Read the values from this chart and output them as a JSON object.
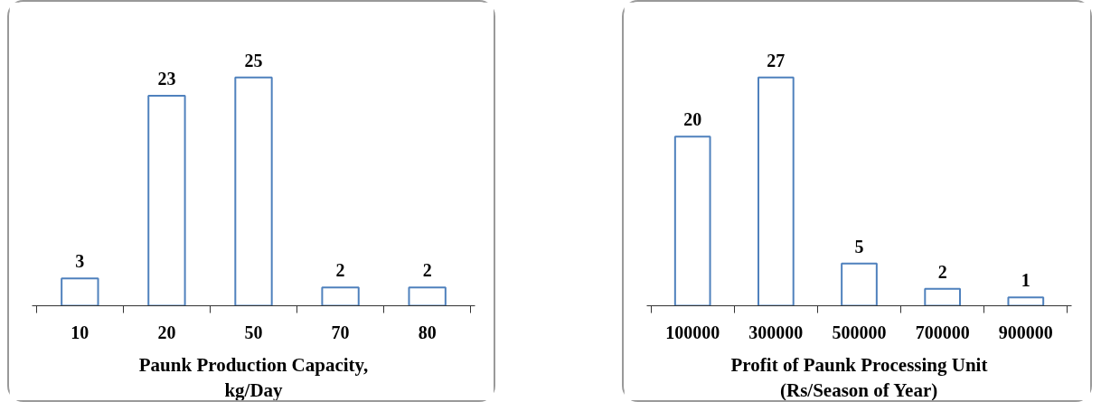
{
  "chart_data": [
    {
      "type": "bar",
      "xlabel": "Paunk Production Capacity,\nkg/Day",
      "categories": [
        "10",
        "20",
        "50",
        "70",
        "80"
      ],
      "series": [
        {
          "color": "#4f81bd",
          "values": [
            3,
            23,
            25,
            2,
            2
          ]
        }
      ],
      "data_labels": true,
      "grid": false,
      "tick_labels": "x"
    },
    {
      "type": "bar",
      "xlabel": "Profit of Paunk Processing Unit\n(Rs/Season of Year)",
      "categories": [
        "100000",
        "300000",
        "500000",
        "700000",
        "900000"
      ],
      "series": [
        {
          "color": "#4f81bd",
          "values": [
            20,
            27,
            5,
            2,
            1
          ]
        }
      ],
      "data_labels": true,
      "grid": false,
      "tick_labels": "x"
    }
  ]
}
